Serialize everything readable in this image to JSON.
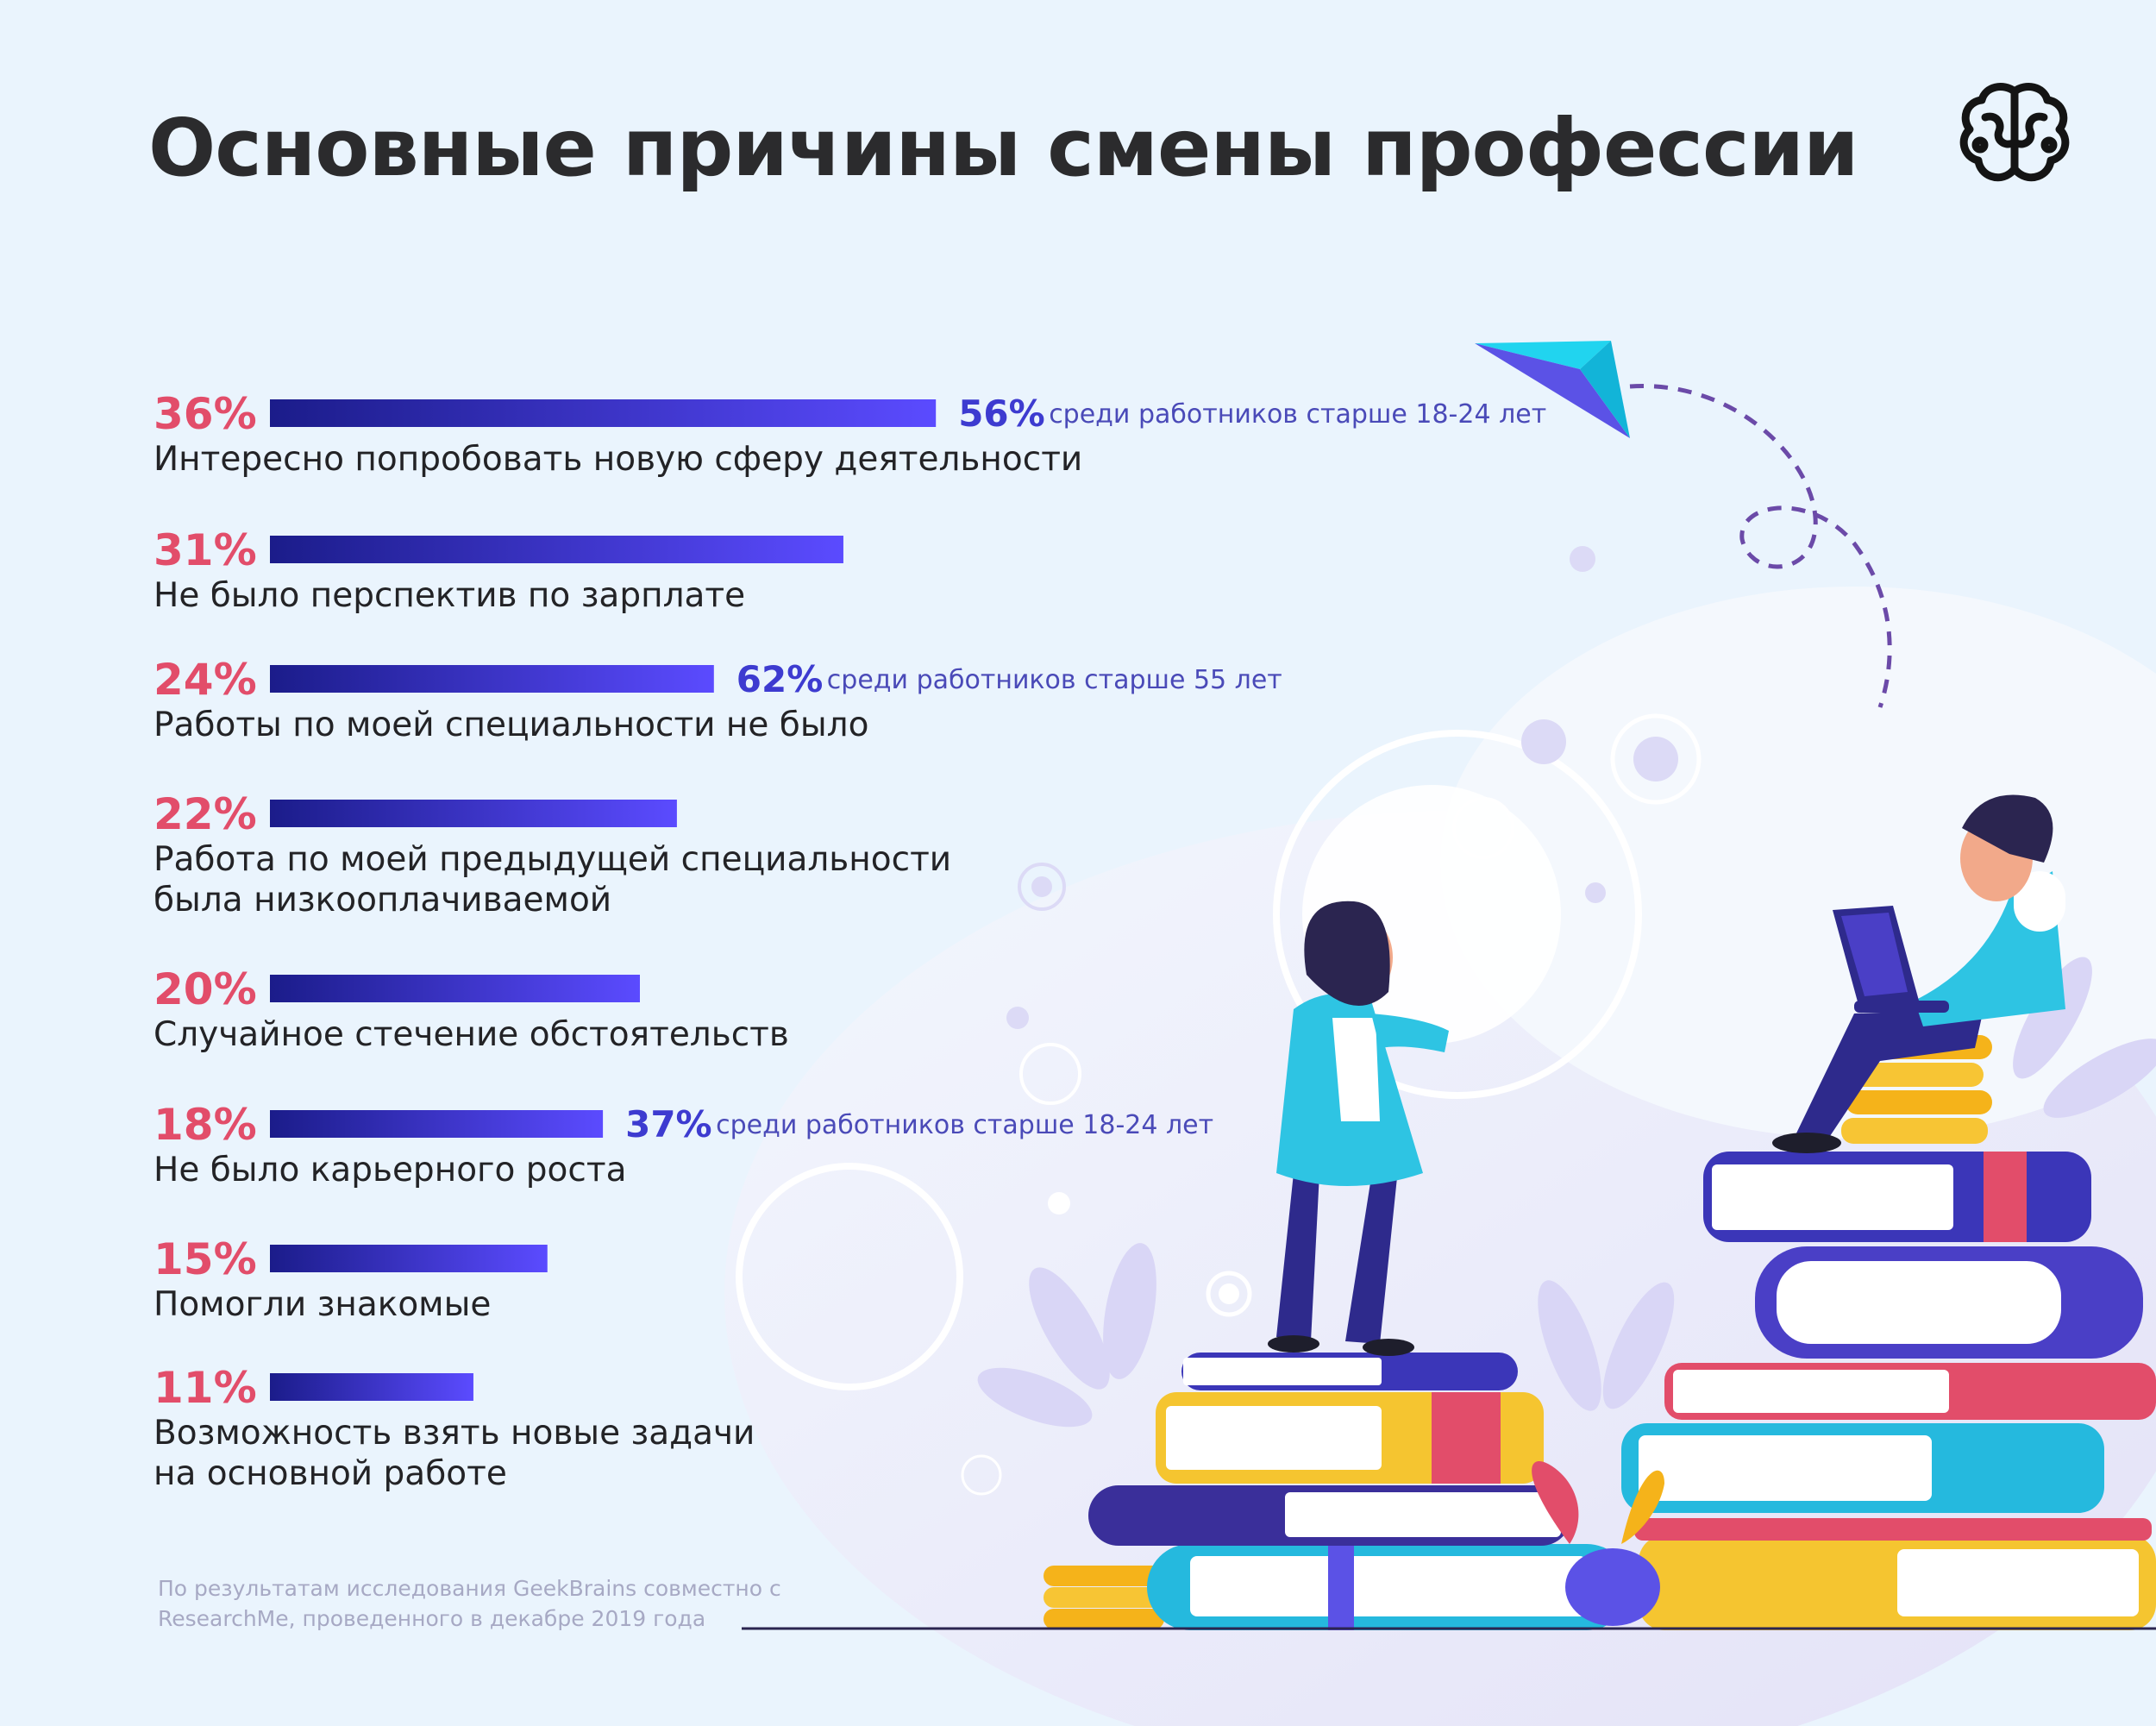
{
  "title": "Основные причины смены профессии",
  "logo_icon": "brain-icon",
  "colors": {
    "background": "#eaf4fd",
    "bar_start": "#1b1c8a",
    "bar_end": "#5b4bff",
    "percent": "#e24d6a",
    "note": "#3d3bd0"
  },
  "chart_data": {
    "type": "bar",
    "orientation": "horizontal",
    "unit": "%",
    "categories": [
      [
        "Интересно попробовать новую сферу деятельности"
      ],
      [
        "Не было перспектив по зарплате"
      ],
      [
        "Работы по моей специальности не было"
      ],
      [
        "Работа по моей предыдущей специальности",
        "была низкооплачиваемой"
      ],
      [
        "Случайное стечение обстоятельств"
      ],
      [
        "Не было карьерного роста"
      ],
      [
        "Помогли знакомые"
      ],
      [
        "Возможность взять новые задачи",
        "на основной работе"
      ]
    ],
    "values": [
      36,
      31,
      24,
      22,
      20,
      18,
      15,
      11
    ],
    "value_labels": [
      "36%",
      "31%",
      "24%",
      "22%",
      "20%",
      "18%",
      "15%",
      "11%"
    ],
    "annotations": [
      {
        "bar_index": 0,
        "percent": "56%",
        "text": "среди работников старше 18-24 лет"
      },
      {
        "bar_index": 2,
        "percent": "62%",
        "text": "среди работников старше 55 лет"
      },
      {
        "bar_index": 5,
        "percent": "37%",
        "text": "среди работников старше 18-24 лет"
      }
    ]
  },
  "source": "По результатам исследования GeekBrains совместно с ResearchMe, проведенного в декабре 2019 года"
}
